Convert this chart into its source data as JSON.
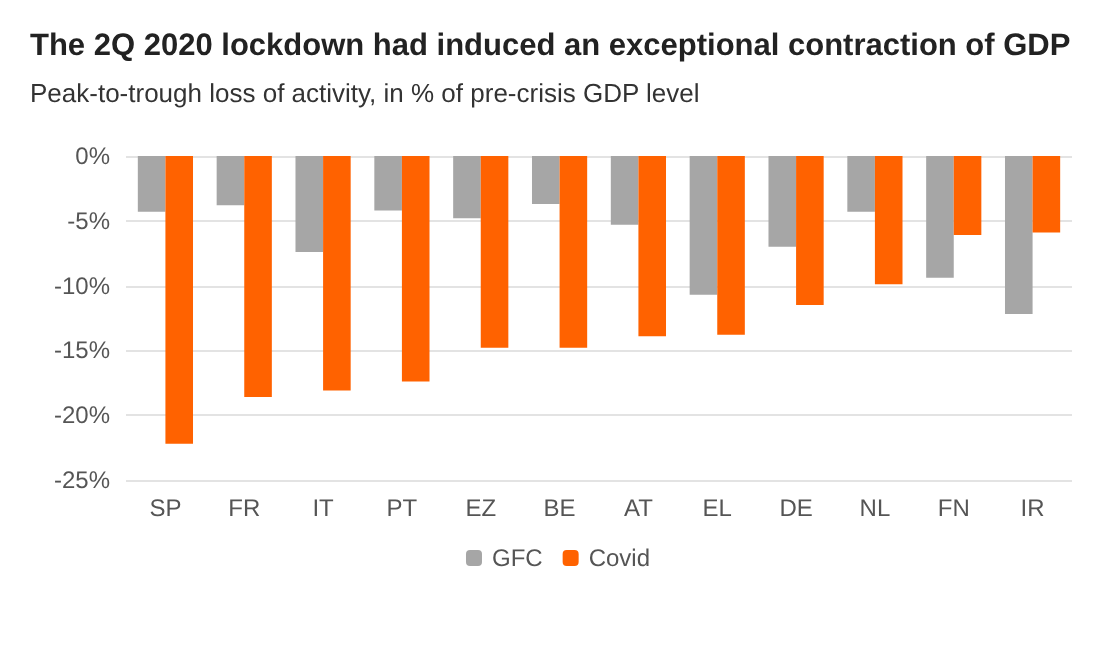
{
  "chart_data": {
    "type": "bar",
    "title": "The 2Q 2020 lockdown had induced an exceptional contraction of GDP",
    "subtitle": "Peak-to-trough loss of activity, in % of pre-crisis GDP level",
    "categories": [
      "SP",
      "FR",
      "IT",
      "PT",
      "EZ",
      "BE",
      "AT",
      "EL",
      "DE",
      "NL",
      "FN",
      "IR"
    ],
    "series": [
      {
        "name": "GFC",
        "color": "#a6a6a6",
        "values": [
          -4.3,
          -3.8,
          -7.4,
          -4.2,
          -4.8,
          -3.7,
          -5.3,
          -10.7,
          -7.0,
          -4.3,
          -9.4,
          -12.2
        ]
      },
      {
        "name": "Covid",
        "color": "#ff6200",
        "values": [
          -22.2,
          -18.6,
          -18.1,
          -17.4,
          -14.8,
          -14.8,
          -13.9,
          -13.8,
          -11.5,
          -9.9,
          -6.1,
          -5.9
        ]
      }
    ],
    "ylim": [
      -25,
      0
    ],
    "yticks": [
      {
        "value": -25,
        "label": "-25%"
      },
      {
        "value": -20,
        "label": "-20%"
      },
      {
        "value": -15,
        "label": "-15%"
      },
      {
        "value": -10,
        "label": "-10%"
      },
      {
        "value": -5,
        "label": "-5%"
      },
      {
        "value": 0,
        "label": "0%"
      }
    ],
    "grid": "y",
    "legend": "bottom"
  }
}
